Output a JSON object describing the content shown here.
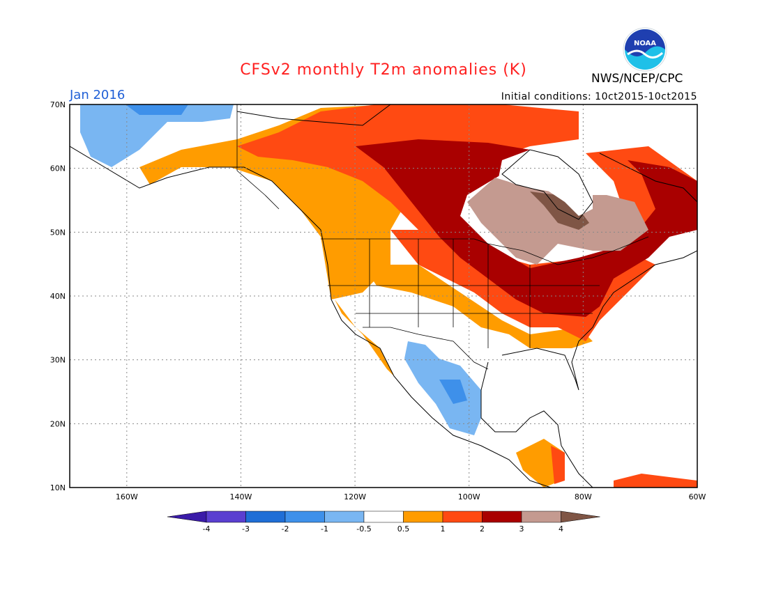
{
  "header": {
    "title": "CFSv2 monthly T2m anomalies (K)",
    "month": "Jan 2016",
    "initial_conditions": "Initial conditions: 10ct2015-10ct2015",
    "agency": "NWS/NCEP/CPC",
    "logo_text": "NOAA"
  },
  "map": {
    "projection": "equirectangular",
    "lon_range": [
      -170,
      -60
    ],
    "lat_range": [
      10,
      70
    ],
    "lat_ticks": [
      "10N",
      "20N",
      "30N",
      "40N",
      "50N",
      "60N",
      "70N"
    ],
    "lat_values": [
      10,
      20,
      30,
      40,
      50,
      60,
      70
    ],
    "lon_ticks": [
      "160W",
      "140W",
      "120W",
      "100W",
      "80W",
      "60W"
    ],
    "lon_values": [
      -160,
      -140,
      -120,
      -100,
      -80,
      -60
    ],
    "grid": "dotted"
  },
  "colorbar": {
    "levels": [
      "-4",
      "-3",
      "-2",
      "-1",
      "-0.5",
      "0.5",
      "1",
      "2",
      "3",
      "4"
    ],
    "colors": [
      "#3a1ba8",
      "#5a3fd0",
      "#1f6ed6",
      "#3e90ea",
      "#79b6f2",
      "#ffffff",
      "#ff9c00",
      "#ff4a12",
      "#a90000",
      "#c49a90",
      "#7f5545"
    ]
  },
  "colors": {
    "title": "#ff1f1f",
    "month_label": "#1f5fd6",
    "land_outline": "#000000"
  }
}
